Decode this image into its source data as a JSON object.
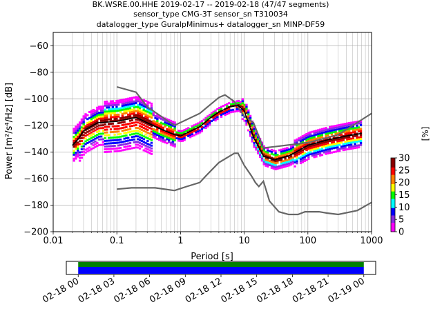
{
  "title_lines": [
    "BK.WSRE.00.HHE   2019-02-17 -- 2019-02-18  (47/47 segments)",
    "sensor_type CMG-3T sensor_sn T310034",
    "datalogger_type GuralpMinimus+ datalogger_sn MINP-DF59"
  ],
  "chart_data": [
    {
      "type": "line",
      "title": "BK.WSRE.00.HHE   2019-02-17 -- 2019-02-18  (47/47 segments)",
      "xlabel": "Period [s]",
      "ylabel": "Power [m²/s⁴/Hz] [dB]",
      "x_scale": "log",
      "xlim": [
        0.01,
        1000
      ],
      "ylim": [
        -200,
        -50
      ],
      "x_ticks": [
        0.01,
        0.1,
        1,
        10,
        100,
        1000
      ],
      "x_tick_labels": [
        "0.01",
        "0.1",
        "1",
        "10",
        "100",
        "1000"
      ],
      "y_ticks": [
        -200,
        -180,
        -160,
        -140,
        -120,
        -100,
        -80,
        -60
      ],
      "y_tick_labels": [
        "−200",
        "−180",
        "−160",
        "−140",
        "−120",
        "−100",
        "−80",
        "−60"
      ],
      "grid": true,
      "colorbar": {
        "label": "[%]",
        "min": 0,
        "max": 30,
        "ticks": [
          0,
          5,
          10,
          15,
          20,
          25,
          30
        ],
        "colormap": [
          "#ffffff",
          "#ff00ff",
          "#8a2be2",
          "#0000ff",
          "#00ffff",
          "#00ff00",
          "#ffff00",
          "#ff8000",
          "#ff0000",
          "#8b0000"
        ]
      },
      "series": [
        {
          "color": "#666666",
          "points": [
            [
              0.1,
              -91
            ],
            [
              0.2,
              -95
            ],
            [
              0.3,
              -106
            ],
            [
              0.8,
              -120
            ],
            [
              2,
              -111
            ],
            [
              4,
              -99
            ],
            [
              5,
              -97
            ],
            [
              7,
              -102
            ],
            [
              10,
              -113
            ],
            [
              14,
              -118
            ],
            [
              20,
              -137
            ],
            [
              30,
              -136
            ],
            [
              100,
              -133
            ],
            [
              300,
              -127
            ],
            [
              1000,
              -111
            ]
          ]
        },
        {
          "color": "#666666",
          "points": [
            [
              0.1,
              -168
            ],
            [
              0.17,
              -167
            ],
            [
              0.4,
              -167
            ],
            [
              0.8,
              -169
            ],
            [
              1.25,
              -166
            ],
            [
              2,
              -163
            ],
            [
              2.5,
              -158
            ],
            [
              4,
              -148
            ],
            [
              7,
              -141
            ],
            [
              8,
              -141
            ],
            [
              10,
              -150
            ],
            [
              13,
              -158
            ],
            [
              15,
              -163
            ],
            [
              17,
              -166
            ],
            [
              20,
              -162
            ],
            [
              25,
              -177
            ],
            [
              35,
              -185
            ],
            [
              50,
              -187
            ],
            [
              70,
              -187
            ],
            [
              90,
              -185
            ],
            [
              120,
              -185
            ],
            [
              150,
              -185
            ],
            [
              200,
              -186
            ],
            [
              300,
              -187
            ],
            [
              600,
              -184
            ],
            [
              1000,
              -178
            ]
          ]
        },
        {
          "color": "#000000",
          "points": [
            [
              0.02,
              -135
            ],
            [
              0.025,
              -130
            ],
            [
              0.03,
              -124
            ],
            [
              0.05,
              -118
            ],
            [
              0.1,
              -117
            ],
            [
              0.2,
              -114
            ],
            [
              0.3,
              -118
            ],
            [
              0.5,
              -123
            ],
            [
              0.8,
              -127
            ],
            [
              1,
              -128
            ],
            [
              2,
              -121
            ],
            [
              3,
              -114
            ],
            [
              4,
              -110
            ],
            [
              6,
              -106
            ],
            [
              8,
              -105
            ],
            [
              10,
              -109
            ],
            [
              14,
              -129
            ],
            [
              20,
              -143
            ],
            [
              30,
              -146
            ],
            [
              50,
              -143
            ],
            [
              100,
              -135
            ],
            [
              200,
              -131
            ],
            [
              400,
              -128
            ],
            [
              700,
              -126
            ]
          ]
        }
      ]
    },
    {
      "type": "timeline",
      "xlim": [
        "2019-02-17 23:00",
        "2019-02-19 01:00"
      ],
      "x_tick_labels": [
        "02-18 00",
        "02-18 03",
        "02-18 06",
        "02-18 09",
        "02-18 12",
        "02-18 15",
        "02-18 18",
        "02-18 21",
        "02-19 00"
      ],
      "coverage": [
        {
          "start": "2019-02-18 00:00",
          "end": "2019-02-19 00:00",
          "color": "#008000"
        },
        {
          "start": "2019-02-18 00:00",
          "end": "2019-02-19 00:00",
          "color": "#0000ff"
        }
      ]
    }
  ]
}
